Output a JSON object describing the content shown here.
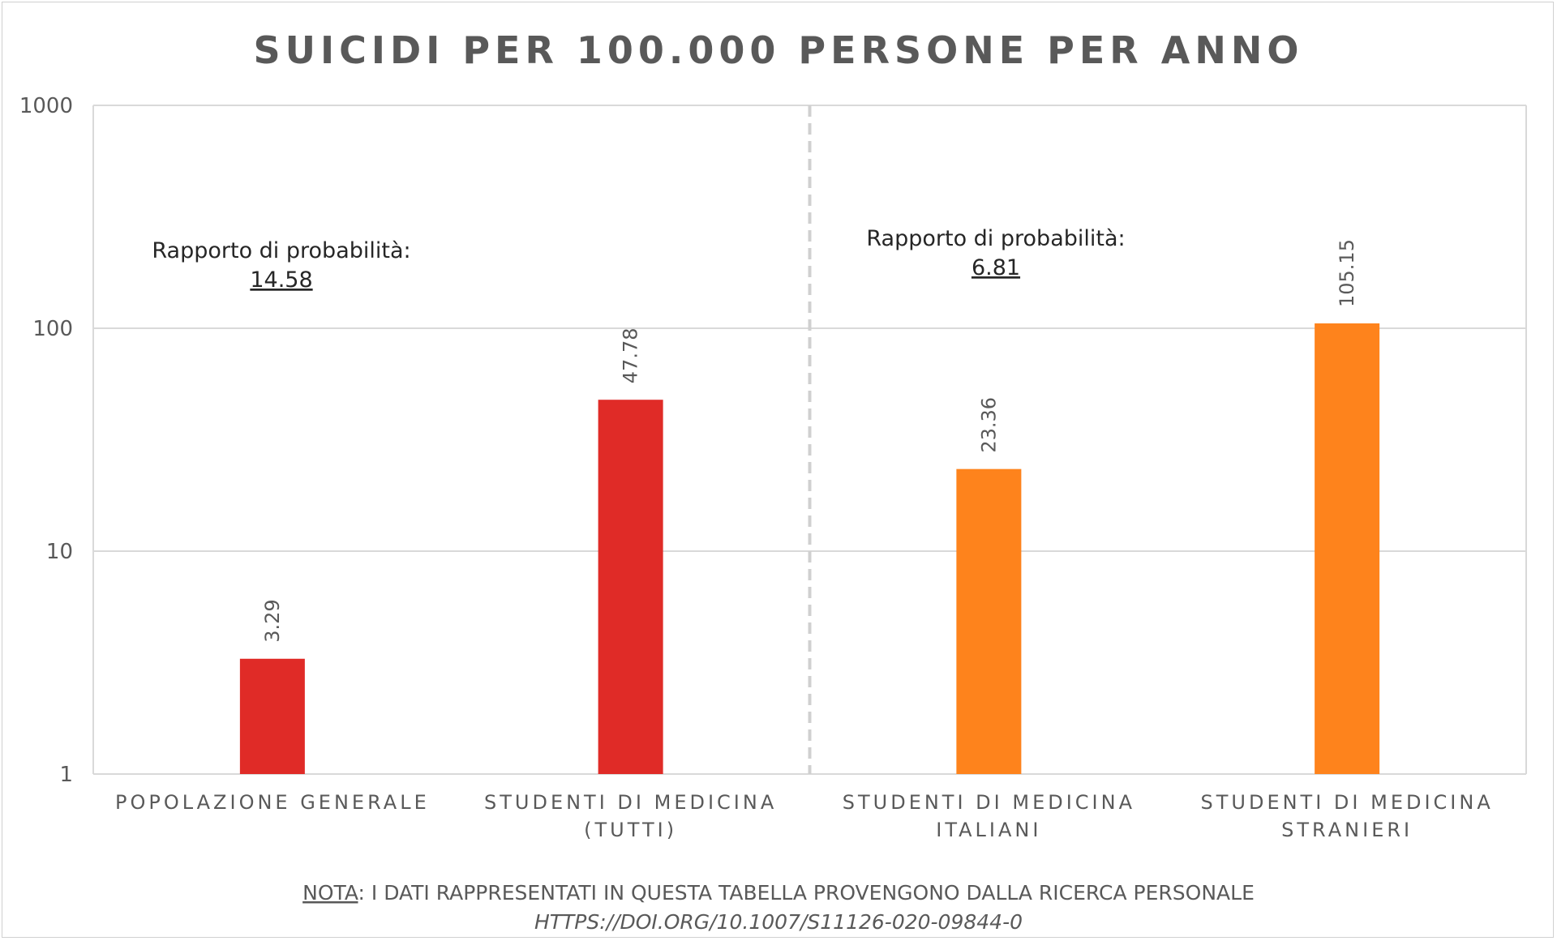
{
  "chart_data": {
    "type": "bar",
    "title": "SUICIDI PER 100.000 PERSONE PER ANNO",
    "categories": [
      [
        "POPOLAZIONE GENERALE"
      ],
      [
        "STUDENTI DI MEDICINA",
        "(TUTTI)"
      ],
      [
        "STUDENTI DI MEDICINA",
        "ITALIANI"
      ],
      [
        "STUDENTI DI MEDICINA",
        "STRANIERI"
      ]
    ],
    "values": [
      3.29,
      47.78,
      23.36,
      105.15
    ],
    "value_labels": [
      "3.29",
      "47.78",
      "23.36",
      "105.15"
    ],
    "bar_colors": [
      "#e02b27",
      "#e02b27",
      "#fe831c",
      "#fe831c"
    ],
    "y_scale": "log",
    "ylim": [
      1,
      1000
    ],
    "y_ticks": [
      1,
      10,
      100,
      1000
    ],
    "y_tick_labels": [
      "1",
      "10",
      "100",
      "1000"
    ],
    "grid": true,
    "divider": "dashed vertical line between the 2nd and 3rd category",
    "annotations": [
      {
        "label": "Rapporto di probabilità:",
        "value": "14.58"
      },
      {
        "label": "Rapporto di probabilità:",
        "value": "6.81"
      }
    ],
    "note": {
      "prefix": "NOTA",
      "text": ": I DATI RAPPRESENTATI IN QUESTA TABELLA PROVENGONO DALLA RICERCA PERSONALE",
      "link": "HTTPS://DOI.ORG/10.1007/S11126-020-09844-0"
    }
  },
  "colors": {
    "text": "#595959",
    "grid": "#d9d9d9",
    "divider": "#d0d0d0",
    "annotation_text": "#262626"
  }
}
